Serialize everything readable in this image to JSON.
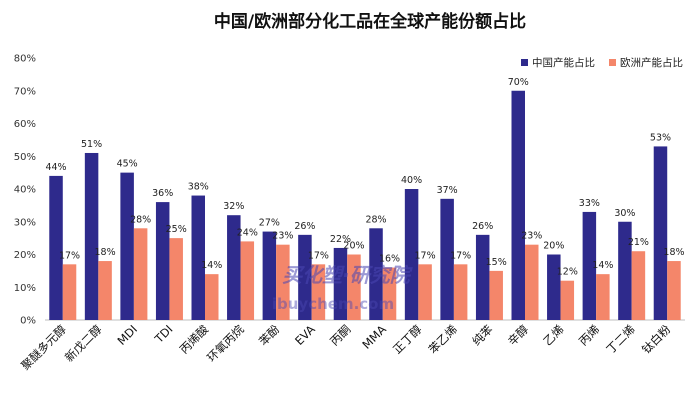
{
  "chart_data": {
    "type": "bar",
    "title": "中国/欧洲部分化工品在全球产能份额占比",
    "categories": [
      "聚醚多元醇",
      "新戊二醇",
      "MDI",
      "TDI",
      "丙烯酸",
      "环氧丙烷",
      "苯酚",
      "EVA",
      "丙酮",
      "MMA",
      "正丁醇",
      "苯乙烯",
      "纯苯",
      "辛醇",
      "乙烯",
      "丙烯",
      "丁二烯",
      "钛白粉"
    ],
    "series": [
      {
        "name": "中国产能占比",
        "color": "#2e2a8c",
        "values": [
          44,
          51,
          45,
          36,
          38,
          32,
          27,
          26,
          22,
          28,
          40,
          37,
          26,
          70,
          20,
          33,
          30,
          53
        ]
      },
      {
        "name": "欧洲产能占比",
        "color": "#f4866a",
        "values": [
          17,
          18,
          28,
          25,
          14,
          24,
          23,
          17,
          20,
          16,
          17,
          17,
          15,
          23,
          12,
          14,
          21,
          18
        ]
      }
    ],
    "ylim": [
      0,
      80
    ],
    "yticks": [
      "0%",
      "10%",
      "20%",
      "30%",
      "40%",
      "50%",
      "60%",
      "70%",
      "80%"
    ],
    "value_suffix": "%",
    "grid": false,
    "legend_position": "top-right",
    "watermark": [
      "买化塑·研究院",
      "ibuychem.com"
    ]
  }
}
